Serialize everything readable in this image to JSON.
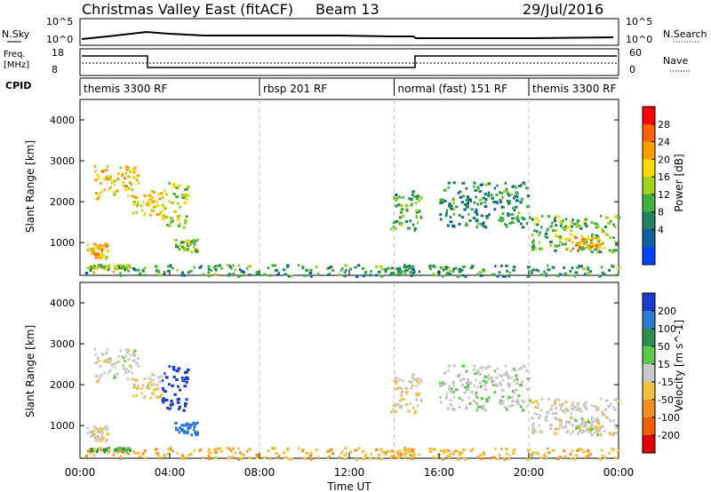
{
  "header": {
    "title": "Christmas Valley East (fitACF)",
    "beam": "Beam 13",
    "date": "29/Jul/2016"
  },
  "nsky_panel": {
    "left_label": "N.Sky",
    "right_label": "N.Search",
    "left_ticks": [
      "10^5",
      "10^0"
    ],
    "right_ticks": [
      "10^5",
      "10^0"
    ]
  },
  "freq_panel": {
    "left_label": "Freq.",
    "left_unit": "[MHz]",
    "right_label": "Nave",
    "left_ticks": [
      "18",
      "8"
    ],
    "right_ticks": [
      "60",
      "0"
    ]
  },
  "cpid": {
    "label": "CPID",
    "segments": [
      {
        "name": "themis 3300 RF",
        "start_h": 0,
        "end_h": 8
      },
      {
        "name": "rbsp 201 RF",
        "start_h": 8,
        "end_h": 14
      },
      {
        "name": "normal (fast) 151 RF",
        "start_h": 14,
        "end_h": 20
      },
      {
        "name": "themis 3300 RF",
        "start_h": 20,
        "end_h": 24
      }
    ]
  },
  "x_axis": {
    "label": "Time UT",
    "ticks": [
      "00:00",
      "04:00",
      "08:00",
      "12:00",
      "16:00",
      "20:00",
      "00:00"
    ],
    "range_hours": [
      0,
      24
    ],
    "dashed_marks_h": [
      8,
      14,
      20
    ]
  },
  "power_panel": {
    "ylabel": "Slant Range [km]",
    "yticks": [
      "1000",
      "2000",
      "3000",
      "4000"
    ],
    "ylim": [
      200,
      4500
    ],
    "colorbar_label": "Power [dB]",
    "colorbar_ticks": [
      "28",
      "24",
      "20",
      "16",
      "12",
      "8",
      "4"
    ],
    "colorbar_colors": [
      "#ff0000",
      "#ff6000",
      "#ffa000",
      "#ffd800",
      "#a0d020",
      "#40b040",
      "#208060",
      "#1060a0",
      "#0040ff"
    ]
  },
  "velocity_panel": {
    "ylabel": "Slant Range [km]",
    "yticks": [
      "1000",
      "2000",
      "3000",
      "4000"
    ],
    "ylim": [
      200,
      4500
    ],
    "colorbar_label": "Velocity [m s^-1]",
    "colorbar_ticks": [
      "200",
      "100",
      "50",
      "15",
      "-15",
      "-50",
      "-100",
      "-200"
    ],
    "colorbar_colors": [
      "#1a3cc8",
      "#2e7ad0",
      "#2f8f4f",
      "#5cc84a",
      "#c8c8c8",
      "#f0c040",
      "#f09020",
      "#f06000",
      "#e00000"
    ]
  },
  "chart_data": {
    "type": "heatmap",
    "x_unit": "hours UT",
    "clusters": [
      {
        "t0": 0.3,
        "t1": 1.2,
        "r0": 600,
        "r1": 1000,
        "power": 22,
        "vel": -10
      },
      {
        "t0": 0.4,
        "t1": 2.2,
        "r0": 380,
        "r1": 480,
        "power": 18,
        "vel": 40
      },
      {
        "t0": 0.6,
        "t1": 2.6,
        "r0": 2100,
        "r1": 2900,
        "power": 21,
        "vel": 0
      },
      {
        "t0": 2.3,
        "t1": 3.6,
        "r0": 1700,
        "r1": 2300,
        "power": 20,
        "vel": -20
      },
      {
        "t0": 3.6,
        "t1": 4.8,
        "r0": 1400,
        "r1": 2500,
        "power": 16,
        "vel": 180
      },
      {
        "t0": 4.2,
        "t1": 5.2,
        "r0": 800,
        "r1": 1100,
        "power": 14,
        "vel": 100
      },
      {
        "t0": 13.8,
        "t1": 15.2,
        "r0": 1300,
        "r1": 2300,
        "power": 12,
        "vel": -10
      },
      {
        "t0": 16.0,
        "t1": 20.0,
        "r0": 1400,
        "r1": 2500,
        "power": 9,
        "vel": 5
      },
      {
        "t0": 20.0,
        "t1": 24.0,
        "r0": 800,
        "r1": 1700,
        "power": 14,
        "vel": -5
      },
      {
        "t0": 21.6,
        "t1": 23.2,
        "r0": 800,
        "r1": 1200,
        "power": 22,
        "vel": 0
      },
      {
        "t0": 0.2,
        "t1": 24.0,
        "r0": 200,
        "r1": 480,
        "power": 10,
        "vel": -40
      }
    ]
  }
}
